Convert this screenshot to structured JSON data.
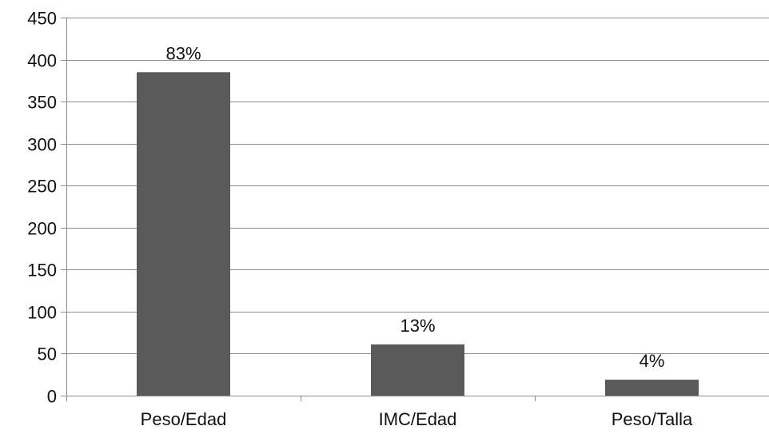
{
  "chart_data": {
    "type": "bar",
    "title": "",
    "xlabel": "",
    "ylabel": "",
    "categories": [
      "Peso/Edad",
      "IMC/Edad",
      "Peso/Talla"
    ],
    "values": [
      385,
      61,
      19
    ],
    "data_labels": [
      "83%",
      "13%",
      "4%"
    ],
    "ylim": [
      0,
      450
    ],
    "yticks": [
      0,
      50,
      100,
      150,
      200,
      250,
      300,
      350,
      400,
      450
    ],
    "grid": true,
    "legend": "none",
    "bar_color": "#5a5a5a",
    "grid_color": "#8c8c8c",
    "axis_color": "#8c8c8c"
  }
}
